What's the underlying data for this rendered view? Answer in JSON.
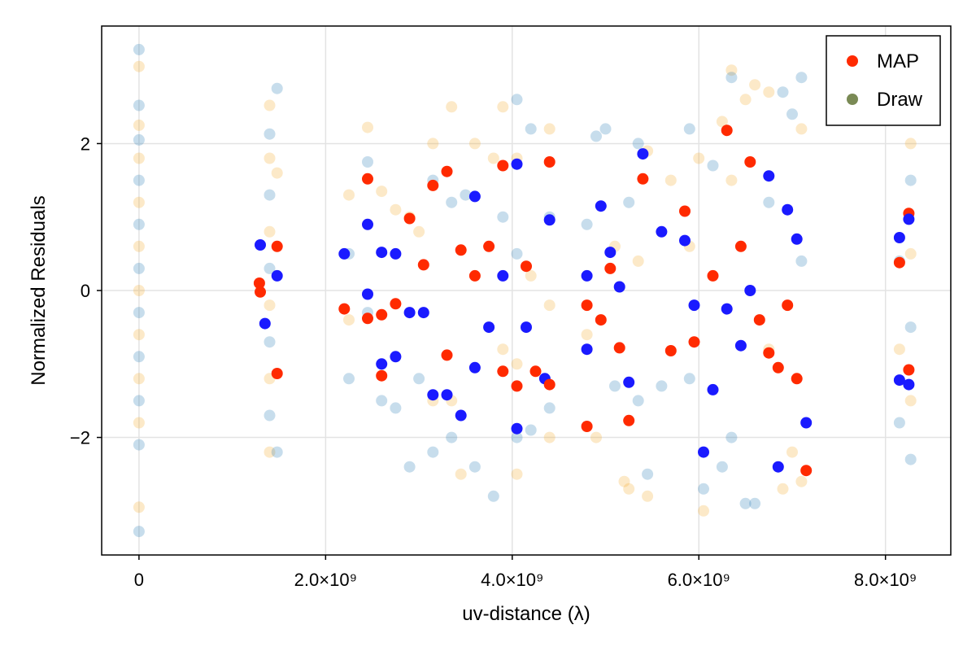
{
  "chart_data": {
    "type": "scatter",
    "title": "",
    "xlabel": "uv-distance (λ)",
    "ylabel": "Normalized Residuals",
    "xlim": [
      -400000000,
      8700000000
    ],
    "ylim": [
      -3.6,
      3.6
    ],
    "grid": true,
    "legend_position": "top-right",
    "x_ticks": [
      {
        "value": 0,
        "label": "0"
      },
      {
        "value": 2000000000,
        "label": "2.0×10⁹"
      },
      {
        "value": 4000000000,
        "label": "4.0×10⁹"
      },
      {
        "value": 6000000000,
        "label": "6.0×10⁹"
      },
      {
        "value": 8000000000,
        "label": "8.0×10⁹"
      }
    ],
    "y_ticks": [
      {
        "value": -2,
        "label": "−2"
      },
      {
        "value": 0,
        "label": "0"
      },
      {
        "value": 2,
        "label": "2"
      }
    ],
    "legend": [
      {
        "label": "MAP",
        "color": "#ff2a00"
      },
      {
        "label": "Draw",
        "color": "#7a8a55"
      }
    ],
    "series": [
      {
        "name": "Draw",
        "colors": [
          "#1f77b4",
          "#f5a623"
        ],
        "alpha": 0.25,
        "points": [
          [
            0,
            3.28
          ],
          [
            0,
            3.05
          ],
          [
            0,
            2.52
          ],
          [
            0,
            2.25
          ],
          [
            0,
            2.05
          ],
          [
            0,
            1.8
          ],
          [
            0,
            1.5
          ],
          [
            0,
            1.2
          ],
          [
            0,
            0.9
          ],
          [
            0,
            0.6
          ],
          [
            0,
            0.3
          ],
          [
            0,
            0.0
          ],
          [
            0,
            -0.3
          ],
          [
            0,
            -0.6
          ],
          [
            0,
            -0.9
          ],
          [
            0,
            -1.2
          ],
          [
            0,
            -1.5
          ],
          [
            0,
            -1.8
          ],
          [
            0,
            -2.1
          ],
          [
            0,
            -2.95
          ],
          [
            0,
            -3.28
          ],
          [
            1400000000,
            2.52
          ],
          [
            1400000000,
            2.13
          ],
          [
            1400000000,
            1.8
          ],
          [
            1400000000,
            1.3
          ],
          [
            1400000000,
            0.8
          ],
          [
            1400000000,
            0.3
          ],
          [
            1400000000,
            -0.2
          ],
          [
            1400000000,
            -0.7
          ],
          [
            1400000000,
            -1.2
          ],
          [
            1400000000,
            -1.7
          ],
          [
            1400000000,
            -2.2
          ],
          [
            1480000000,
            2.75
          ],
          [
            1480000000,
            1.6
          ],
          [
            1480000000,
            -2.2
          ],
          [
            2250000000,
            1.3
          ],
          [
            2250000000,
            0.5
          ],
          [
            2250000000,
            -0.4
          ],
          [
            2250000000,
            -1.2
          ],
          [
            2450000000,
            2.22
          ],
          [
            2450000000,
            1.75
          ],
          [
            2450000000,
            0.9
          ],
          [
            2450000000,
            -0.3
          ],
          [
            2600000000,
            1.35
          ],
          [
            2600000000,
            -1.5
          ],
          [
            2750000000,
            1.1
          ],
          [
            2750000000,
            -1.6
          ],
          [
            2900000000,
            1.0
          ],
          [
            2900000000,
            -2.4
          ],
          [
            3000000000,
            0.8
          ],
          [
            3000000000,
            -1.2
          ],
          [
            3150000000,
            2.0
          ],
          [
            3150000000,
            1.5
          ],
          [
            3150000000,
            -1.5
          ],
          [
            3150000000,
            -2.2
          ],
          [
            3350000000,
            2.5
          ],
          [
            3350000000,
            1.2
          ],
          [
            3350000000,
            -1.5
          ],
          [
            3350000000,
            -2.0
          ],
          [
            3450000000,
            -2.5
          ],
          [
            3500000000,
            1.3
          ],
          [
            3600000000,
            2.0
          ],
          [
            3600000000,
            -2.4
          ],
          [
            3800000000,
            1.8
          ],
          [
            3800000000,
            -2.8
          ],
          [
            3900000000,
            2.5
          ],
          [
            3900000000,
            1.0
          ],
          [
            3900000000,
            -0.8
          ],
          [
            4050000000,
            2.6
          ],
          [
            4050000000,
            1.8
          ],
          [
            4050000000,
            0.5
          ],
          [
            4050000000,
            -1.0
          ],
          [
            4050000000,
            -2.0
          ],
          [
            4050000000,
            -2.5
          ],
          [
            4200000000,
            2.2
          ],
          [
            4200000000,
            0.2
          ],
          [
            4200000000,
            -1.9
          ],
          [
            4400000000,
            2.2
          ],
          [
            4400000000,
            1.0
          ],
          [
            4400000000,
            -0.2
          ],
          [
            4400000000,
            -1.6
          ],
          [
            4400000000,
            -2.0
          ],
          [
            4800000000,
            0.9
          ],
          [
            4800000000,
            -0.6
          ],
          [
            4900000000,
            2.1
          ],
          [
            4900000000,
            -2.0
          ],
          [
            5000000000,
            2.2
          ],
          [
            5100000000,
            0.6
          ],
          [
            5100000000,
            -1.3
          ],
          [
            5200000000,
            -2.6
          ],
          [
            5250000000,
            1.2
          ],
          [
            5250000000,
            -2.7
          ],
          [
            5350000000,
            2.0
          ],
          [
            5350000000,
            0.4
          ],
          [
            5350000000,
            -1.5
          ],
          [
            5450000000,
            1.9
          ],
          [
            5450000000,
            -2.5
          ],
          [
            5450000000,
            -2.8
          ],
          [
            5600000000,
            -1.3
          ],
          [
            5700000000,
            1.5
          ],
          [
            5900000000,
            2.2
          ],
          [
            5900000000,
            0.6
          ],
          [
            5900000000,
            -1.2
          ],
          [
            6000000000,
            1.8
          ],
          [
            6050000000,
            -2.7
          ],
          [
            6050000000,
            -3.0
          ],
          [
            6150000000,
            1.7
          ],
          [
            6250000000,
            2.3
          ],
          [
            6250000000,
            -2.4
          ],
          [
            6350000000,
            3.0
          ],
          [
            6350000000,
            2.9
          ],
          [
            6350000000,
            1.5
          ],
          [
            6350000000,
            -2.0
          ],
          [
            6500000000,
            2.6
          ],
          [
            6500000000,
            -2.9
          ],
          [
            6600000000,
            2.8
          ],
          [
            6600000000,
            -2.9
          ],
          [
            6750000000,
            2.7
          ],
          [
            6750000000,
            1.2
          ],
          [
            6750000000,
            -0.8
          ],
          [
            6900000000,
            2.7
          ],
          [
            6900000000,
            -2.7
          ],
          [
            7000000000,
            2.4
          ],
          [
            7000000000,
            -2.2
          ],
          [
            7100000000,
            2.9
          ],
          [
            7100000000,
            2.2
          ],
          [
            7100000000,
            0.4
          ],
          [
            7100000000,
            -2.6
          ],
          [
            8150000000,
            0.4
          ],
          [
            8150000000,
            -0.8
          ],
          [
            8150000000,
            -1.8
          ],
          [
            8270000000,
            2.0
          ],
          [
            8270000000,
            1.5
          ],
          [
            8270000000,
            0.5
          ],
          [
            8270000000,
            -0.5
          ],
          [
            8270000000,
            -1.5
          ],
          [
            8270000000,
            -2.3
          ]
        ]
      },
      {
        "name": "MAP",
        "colors": [
          "#ff2a00",
          "#1a1aff"
        ],
        "alpha": 1.0,
        "points": [
          [
            1290000000,
            0.1
          ],
          [
            1300000000,
            0.62
          ],
          [
            1300000000,
            -0.02
          ],
          [
            1350000000,
            -0.45
          ],
          [
            1480000000,
            0.6
          ],
          [
            1480000000,
            0.2
          ],
          [
            1480000000,
            -1.13
          ],
          [
            2200000000,
            0.5
          ],
          [
            2200000000,
            -0.25
          ],
          [
            2450000000,
            0.9
          ],
          [
            2450000000,
            1.52
          ],
          [
            2450000000,
            -0.05
          ],
          [
            2450000000,
            -0.38
          ],
          [
            2600000000,
            0.52
          ],
          [
            2600000000,
            -0.33
          ],
          [
            2600000000,
            -1.0
          ],
          [
            2600000000,
            -1.16
          ],
          [
            2750000000,
            0.5
          ],
          [
            2750000000,
            -0.18
          ],
          [
            2750000000,
            -0.9
          ],
          [
            2900000000,
            0.98
          ],
          [
            2900000000,
            -0.3
          ],
          [
            3050000000,
            0.35
          ],
          [
            3050000000,
            -0.3
          ],
          [
            3150000000,
            1.43
          ],
          [
            3150000000,
            -1.42
          ],
          [
            3300000000,
            1.62
          ],
          [
            3300000000,
            -1.42
          ],
          [
            3300000000,
            -0.88
          ],
          [
            3450000000,
            -1.7
          ],
          [
            3450000000,
            0.55
          ],
          [
            3600000000,
            1.28
          ],
          [
            3600000000,
            0.2
          ],
          [
            3600000000,
            -1.05
          ],
          [
            3750000000,
            0.6
          ],
          [
            3750000000,
            -0.5
          ],
          [
            3900000000,
            1.7
          ],
          [
            3900000000,
            0.2
          ],
          [
            3900000000,
            -1.1
          ],
          [
            4050000000,
            1.72
          ],
          [
            4050000000,
            -1.3
          ],
          [
            4050000000,
            -1.88
          ],
          [
            4150000000,
            0.33
          ],
          [
            4150000000,
            -0.5
          ],
          [
            4250000000,
            -1.1
          ],
          [
            4350000000,
            -1.2
          ],
          [
            4400000000,
            1.75
          ],
          [
            4400000000,
            0.96
          ],
          [
            4400000000,
            -1.28
          ],
          [
            4800000000,
            0.2
          ],
          [
            4800000000,
            -0.2
          ],
          [
            4800000000,
            -0.8
          ],
          [
            4800000000,
            -1.85
          ],
          [
            4950000000,
            1.15
          ],
          [
            4950000000,
            -0.4
          ],
          [
            5050000000,
            0.52
          ],
          [
            5050000000,
            0.3
          ],
          [
            5150000000,
            0.05
          ],
          [
            5150000000,
            -0.78
          ],
          [
            5250000000,
            -1.25
          ],
          [
            5250000000,
            -1.77
          ],
          [
            5400000000,
            1.86
          ],
          [
            5400000000,
            1.52
          ],
          [
            5600000000,
            0.8
          ],
          [
            5700000000,
            -0.82
          ],
          [
            5850000000,
            0.68
          ],
          [
            5850000000,
            1.08
          ],
          [
            5950000000,
            -0.2
          ],
          [
            5950000000,
            -0.7
          ],
          [
            6050000000,
            -2.2
          ],
          [
            6150000000,
            0.2
          ],
          [
            6150000000,
            -1.35
          ],
          [
            6300000000,
            2.18
          ],
          [
            6300000000,
            -0.25
          ],
          [
            6450000000,
            0.6
          ],
          [
            6450000000,
            -0.75
          ],
          [
            6550000000,
            1.75
          ],
          [
            6550000000,
            0.0
          ],
          [
            6650000000,
            -0.4
          ],
          [
            6750000000,
            1.56
          ],
          [
            6750000000,
            -0.85
          ],
          [
            6850000000,
            -2.4
          ],
          [
            6850000000,
            -1.05
          ],
          [
            6950000000,
            1.1
          ],
          [
            6950000000,
            -0.2
          ],
          [
            7050000000,
            0.7
          ],
          [
            7050000000,
            -1.2
          ],
          [
            7150000000,
            -1.8
          ],
          [
            7150000000,
            -2.45
          ],
          [
            8150000000,
            0.72
          ],
          [
            8150000000,
            0.38
          ],
          [
            8150000000,
            -1.22
          ],
          [
            8250000000,
            1.05
          ],
          [
            8250000000,
            0.97
          ],
          [
            8250000000,
            -1.08
          ],
          [
            8250000000,
            -1.28
          ]
        ]
      }
    ]
  }
}
